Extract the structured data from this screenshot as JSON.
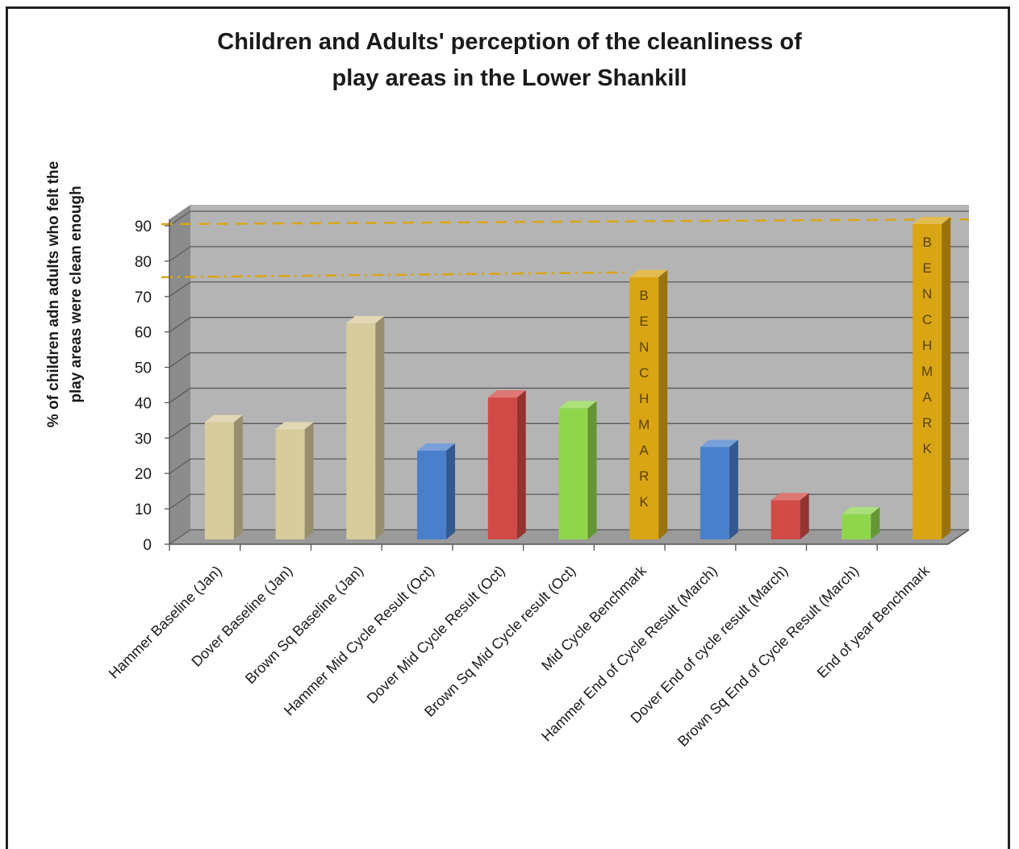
{
  "chart_data": {
    "type": "bar",
    "title_line1": "Children and Adults' perception of the cleanliness of",
    "title_line2": "play areas in the Lower Shankill",
    "ylabel_line1": "% of children adn adults who felt the",
    "ylabel_line2": "play areas were clean enough",
    "xlabel": "",
    "ylim": [
      0,
      90
    ],
    "yticks": [
      0,
      10,
      20,
      30,
      40,
      50,
      60,
      70,
      80,
      90
    ],
    "grid": true,
    "categories": [
      "Hammer Baseline (Jan)",
      "Dover Baseline (Jan)",
      "Brown Sq Baseline (Jan)",
      "Hammer Mid Cycle Result (Oct)",
      "Dover Mid Cycle Result (Oct)",
      "Brown Sq Mid Cycle result (Oct)",
      "Mid Cycle Benchmark",
      "Hammer End of Cycle Result (March)",
      "Dover End of cycle result (March)",
      "Brown Sq End of Cycle Result (March)",
      "End of year Benchmark"
    ],
    "values": [
      34,
      32,
      62,
      26,
      41,
      38,
      75,
      27,
      12,
      8,
      90
    ],
    "bar_colors": [
      "#d8cb9c",
      "#d8cb9c",
      "#d8cb9c",
      "#4a7fcc",
      "#d24a45",
      "#8fd64d",
      "#d9a514",
      "#4a7fcc",
      "#d24a45",
      "#8fd64d",
      "#d9a514"
    ],
    "bar_labels": [
      "",
      "",
      "",
      "",
      "",
      "",
      "BENCHMARK",
      "",
      "",
      "",
      "BENCHMARK"
    ],
    "reference_lines": [
      {
        "value": 90,
        "style": "dashed",
        "color": "#d9a514"
      },
      {
        "value": 75,
        "style": "dash-dot",
        "color": "#d9a514"
      }
    ]
  }
}
